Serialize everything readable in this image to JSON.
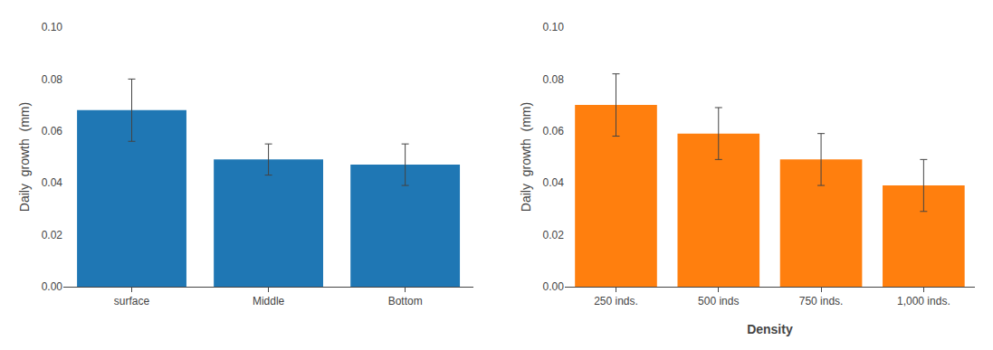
{
  "chart_data": [
    {
      "type": "bar",
      "categories": [
        "surface",
        "Middle",
        "Bottom"
      ],
      "values": [
        0.068,
        0.049,
        0.047
      ],
      "errors_up": [
        0.012,
        0.006,
        0.008
      ],
      "errors_dn": [
        0.012,
        0.006,
        0.008
      ],
      "ylabel": "Daily  growth  (mm)",
      "ylim": [
        0,
        0.1
      ],
      "yticks": [
        {
          "value": 0,
          "label": "0.00"
        },
        0.02,
        0.04,
        0.06,
        0.08,
        {
          "value": 0.1,
          "label": "0.10"
        }
      ],
      "grid": false
    },
    {
      "type": "bar",
      "categories": [
        "250 inds.",
        "500 inds",
        "750 inds.",
        "1,000 inds."
      ],
      "values": [
        0.07,
        0.059,
        0.049,
        0.039
      ],
      "errors_up": [
        0.012,
        0.01,
        0.01,
        0.01
      ],
      "errors_dn": [
        0.012,
        0.01,
        0.01,
        0.01
      ],
      "ylabel": "Daily  growth  (mm)",
      "xlabel": "Density",
      "ylim": [
        0,
        0.1
      ],
      "yticks": [
        {
          "value": 0,
          "label": "0.00"
        },
        0.02,
        0.04,
        0.06,
        0.08,
        {
          "value": 0.1,
          "label": "0.10"
        }
      ],
      "grid": false
    }
  ]
}
